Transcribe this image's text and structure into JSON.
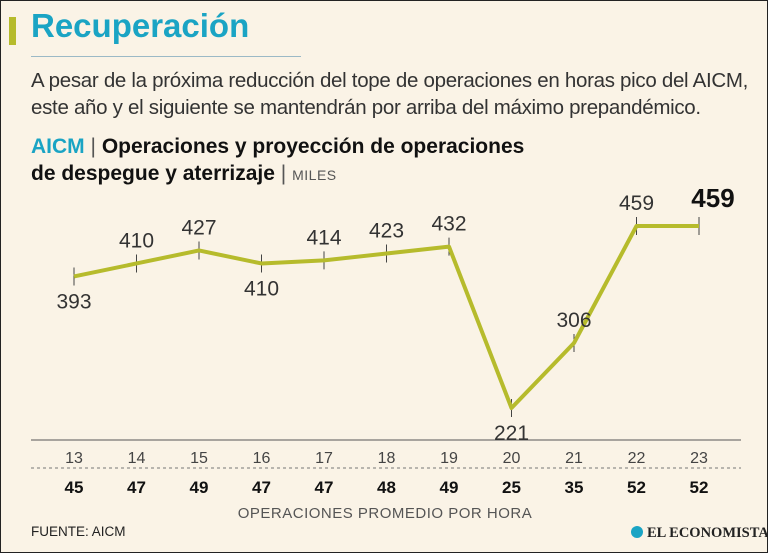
{
  "header": {
    "title": "Recuperación",
    "subtitle": "A pesar de la próxima reducción del tope de operaciones en horas pico del AICM, este año y el siguiente se mantendrán por arriba del máximo prepandémico."
  },
  "chart_title": {
    "source": "AICM",
    "separator": "|",
    "line1": "Operaciones y proyección de operaciones",
    "line2": "de despegue y aterrizaje",
    "units": "MILES"
  },
  "chart_data": {
    "type": "line",
    "title": "Operaciones y proyección de operaciones de despegue y aterrizaje",
    "units": "MILES",
    "x": [
      "13",
      "14",
      "15",
      "16",
      "17",
      "18",
      "19",
      "20",
      "21",
      "22",
      "23"
    ],
    "values": [
      393,
      410,
      427,
      410,
      414,
      423,
      432,
      221,
      306,
      459,
      459
    ],
    "value_labels": [
      "393",
      "410",
      "427",
      "410",
      "414",
      "423",
      "432",
      "221",
      "306",
      "459",
      "459"
    ],
    "highlight_last": true,
    "hourly_ops": [
      "45",
      "47",
      "49",
      "47",
      "47",
      "48",
      "49",
      "25",
      "35",
      "52",
      "52"
    ],
    "hourly_label": "OPERACIONES PROMEDIO POR HORA",
    "ylim": [
      200,
      475
    ]
  },
  "footer": {
    "source": "FUENTE: AICM",
    "brand": "EL ECONOMISTA"
  },
  "colors": {
    "line": "#b6bb2c",
    "title_blue": "#1aa4c4",
    "accent": "#b6bb2c"
  },
  "icons": {
    "brand": "el-economista-logo-icon"
  }
}
